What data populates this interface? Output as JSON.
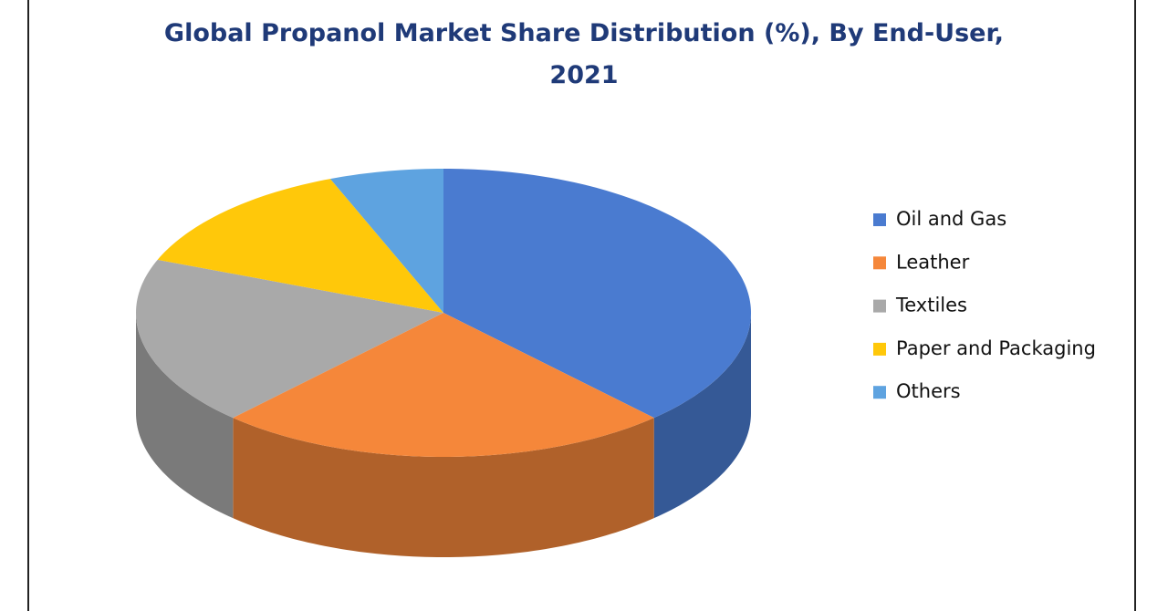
{
  "chart_data": {
    "type": "pie3d",
    "title": "Global Propanol Market Share Distribution (%), By End-User, 2021",
    "categories": [
      "Oil and Gas",
      "Leather",
      "Textiles",
      "Paper and Packaging",
      "Others"
    ],
    "values": [
      38,
      24,
      19,
      13,
      6
    ],
    "colors": [
      "#4a7bd0",
      "#f5873a",
      "#a9a9a9",
      "#ffc80a",
      "#5ea3e0"
    ],
    "legend": "right"
  }
}
